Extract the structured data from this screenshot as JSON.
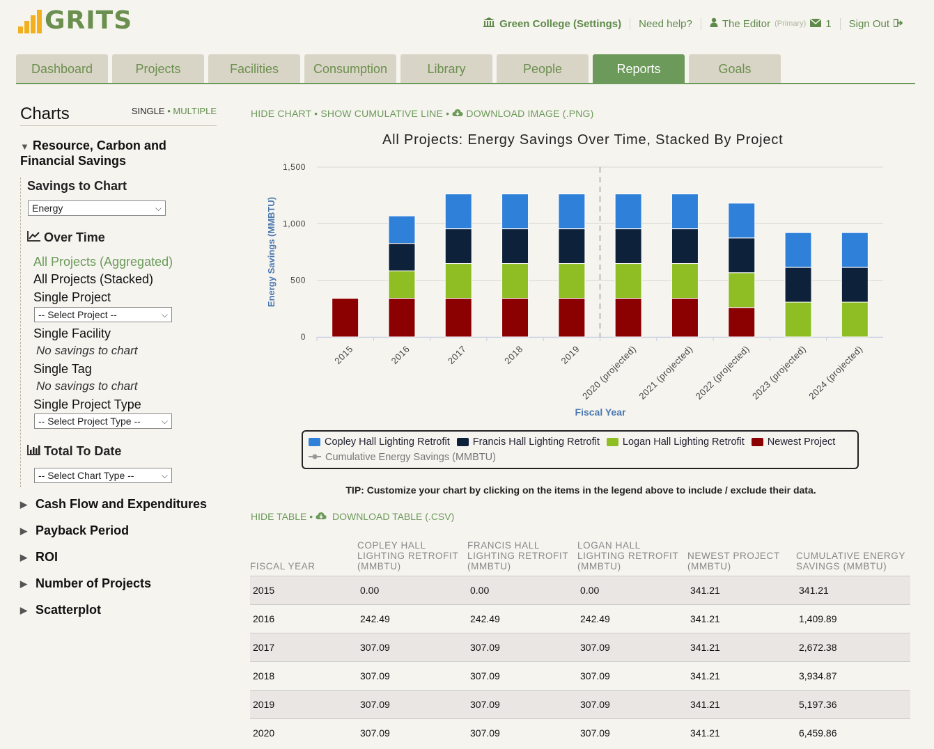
{
  "header": {
    "logo_text": "GRITS",
    "org": "Green College (Settings)",
    "help": "Need help?",
    "user": "The Editor",
    "user_role": "(Primary)",
    "messages": "1",
    "sign_out": "Sign Out"
  },
  "tabs": [
    {
      "label": "Dashboard",
      "active": false
    },
    {
      "label": "Projects",
      "active": false
    },
    {
      "label": "Facilities",
      "active": false
    },
    {
      "label": "Consumption",
      "active": false
    },
    {
      "label": "Library",
      "active": false
    },
    {
      "label": "People",
      "active": false
    },
    {
      "label": "Reports",
      "active": true
    },
    {
      "label": "Goals",
      "active": false
    }
  ],
  "sidebar": {
    "title": "Charts",
    "mode_single": "SINGLE",
    "mode_sep": "•",
    "mode_multiple": "MULTIPLE",
    "section_resource": "Resource, Carbon and Financial Savings",
    "savings_to_chart": "Savings to Chart",
    "savings_select": "Energy",
    "over_time": "Over Time",
    "opt_all_agg": "All Projects (Aggregated)",
    "opt_all_stacked": "All Projects (Stacked)",
    "opt_single_project": "Single Project",
    "select_project": "-- Select Project --",
    "opt_single_facility": "Single Facility",
    "no_savings_1": "No savings to chart",
    "opt_single_tag": "Single Tag",
    "no_savings_2": "No savings to chart",
    "opt_single_type": "Single Project Type",
    "select_type": "-- Select Project Type --",
    "total_to_date": "Total To Date",
    "select_chart_type": "-- Select Chart Type --",
    "collapsed": [
      "Cash Flow and Expenditures",
      "Payback Period",
      "ROI",
      "Number of Projects",
      "Scatterplot"
    ]
  },
  "chart_actions": {
    "hide": "HIDE CHART",
    "cumulative": "SHOW CUMULATIVE LINE",
    "download": "DOWNLOAD IMAGE (.PNG)"
  },
  "tip": "TIP: Customize your chart by clicking on the items in the legend above to include / exclude their data.",
  "table_actions": {
    "hide": "HIDE TABLE",
    "download": "DOWNLOAD TABLE (.CSV)"
  },
  "table": {
    "headers": [
      "FISCAL YEAR",
      "COPLEY HALL LIGHTING RETROFIT (MMBTU)",
      "FRANCIS HALL LIGHTING RETROFIT (MMBTU)",
      "LOGAN HALL LIGHTING RETROFIT (MMBTU)",
      "NEWEST PROJECT (MMBTU)",
      "CUMULATIVE ENERGY SAVINGS (MMBTU)"
    ],
    "rows": [
      [
        "2015",
        "0.00",
        "0.00",
        "0.00",
        "341.21",
        "341.21"
      ],
      [
        "2016",
        "242.49",
        "242.49",
        "242.49",
        "341.21",
        "1,409.89"
      ],
      [
        "2017",
        "307.09",
        "307.09",
        "307.09",
        "341.21",
        "2,672.38"
      ],
      [
        "2018",
        "307.09",
        "307.09",
        "307.09",
        "341.21",
        "3,934.87"
      ],
      [
        "2019",
        "307.09",
        "307.09",
        "307.09",
        "341.21",
        "5,197.36"
      ],
      [
        "2020",
        "307.09",
        "307.09",
        "307.09",
        "341.21",
        "6,459.86"
      ]
    ]
  },
  "chart_data": {
    "type": "bar",
    "stacked": true,
    "title": "All Projects: Energy Savings Over Time, Stacked By Project",
    "xlabel": "Fiscal Year",
    "ylabel": "Energy Savings (MMBTU)",
    "ylim": [
      0,
      1500
    ],
    "yticks": [
      "0",
      "500",
      "1,000",
      "1,500"
    ],
    "grid": true,
    "legend_position": "bottom",
    "categories": [
      "2015",
      "2016",
      "2017",
      "2018",
      "2019",
      "2020 (projected)",
      "2021 (projected)",
      "2022 (projected)",
      "2023 (projected)",
      "2024 (projected)"
    ],
    "projected_divider_after": "2019",
    "series": [
      {
        "name": "Newest Project",
        "color": "#8b0000",
        "values": [
          341.21,
          341.21,
          341.21,
          341.21,
          341.21,
          341.21,
          341.21,
          260,
          0,
          0
        ]
      },
      {
        "name": "Logan Hall Lighting Retrofit",
        "color": "#8ebd24",
        "values": [
          0,
          242.49,
          307.09,
          307.09,
          307.09,
          307.09,
          307.09,
          307.09,
          307.09,
          307.09
        ]
      },
      {
        "name": "Francis Hall Lighting Retrofit",
        "color": "#0e213a",
        "values": [
          0,
          242.49,
          307.09,
          307.09,
          307.09,
          307.09,
          307.09,
          307.09,
          307.09,
          307.09
        ]
      },
      {
        "name": "Copley Hall Lighting Retrofit",
        "color": "#2f80d9",
        "values": [
          0,
          242.49,
          307.09,
          307.09,
          307.09,
          307.09,
          307.09,
          307.09,
          307.09,
          307.09
        ]
      }
    ],
    "legend_order": [
      "Copley Hall Lighting Retrofit",
      "Francis Hall Lighting Retrofit",
      "Logan Hall Lighting Retrofit",
      "Newest Project"
    ],
    "cumulative_series_name": "Cumulative Energy Savings (MMBTU)",
    "cumulative_color": "#999999"
  }
}
